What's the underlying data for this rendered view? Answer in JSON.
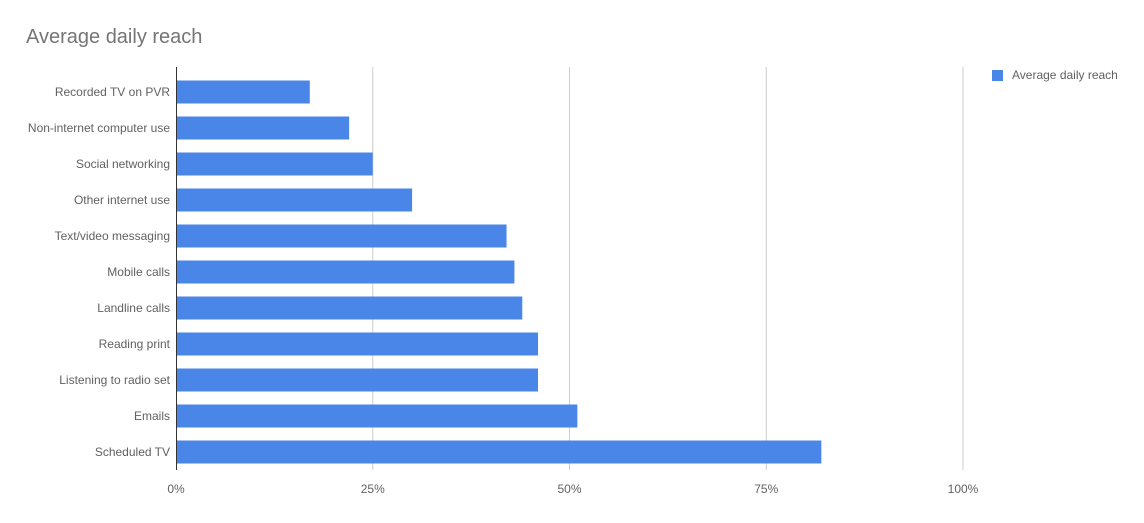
{
  "chart_data": {
    "type": "bar",
    "orientation": "horizontal",
    "title": "Average daily reach",
    "categories": [
      "Recorded TV on PVR",
      "Non-internet computer use",
      "Social networking",
      "Other internet use",
      "Text/video messaging",
      "Mobile calls",
      "Landline calls",
      "Reading print",
      "Listening to radio set",
      "Emails",
      "Scheduled TV"
    ],
    "series": [
      {
        "name": "Average daily reach",
        "values": [
          17,
          22,
          25,
          30,
          42,
          43,
          44,
          46,
          46,
          51,
          82
        ],
        "color": "#4a86e8"
      }
    ],
    "xlim": [
      0,
      100
    ],
    "x_ticks": [
      0,
      25,
      50,
      75,
      100
    ],
    "x_tick_labels": [
      "0%",
      "25%",
      "50%",
      "75%",
      "100%"
    ],
    "xlabel": "",
    "ylabel": "",
    "grid": "vertical",
    "legend": "top-right"
  }
}
